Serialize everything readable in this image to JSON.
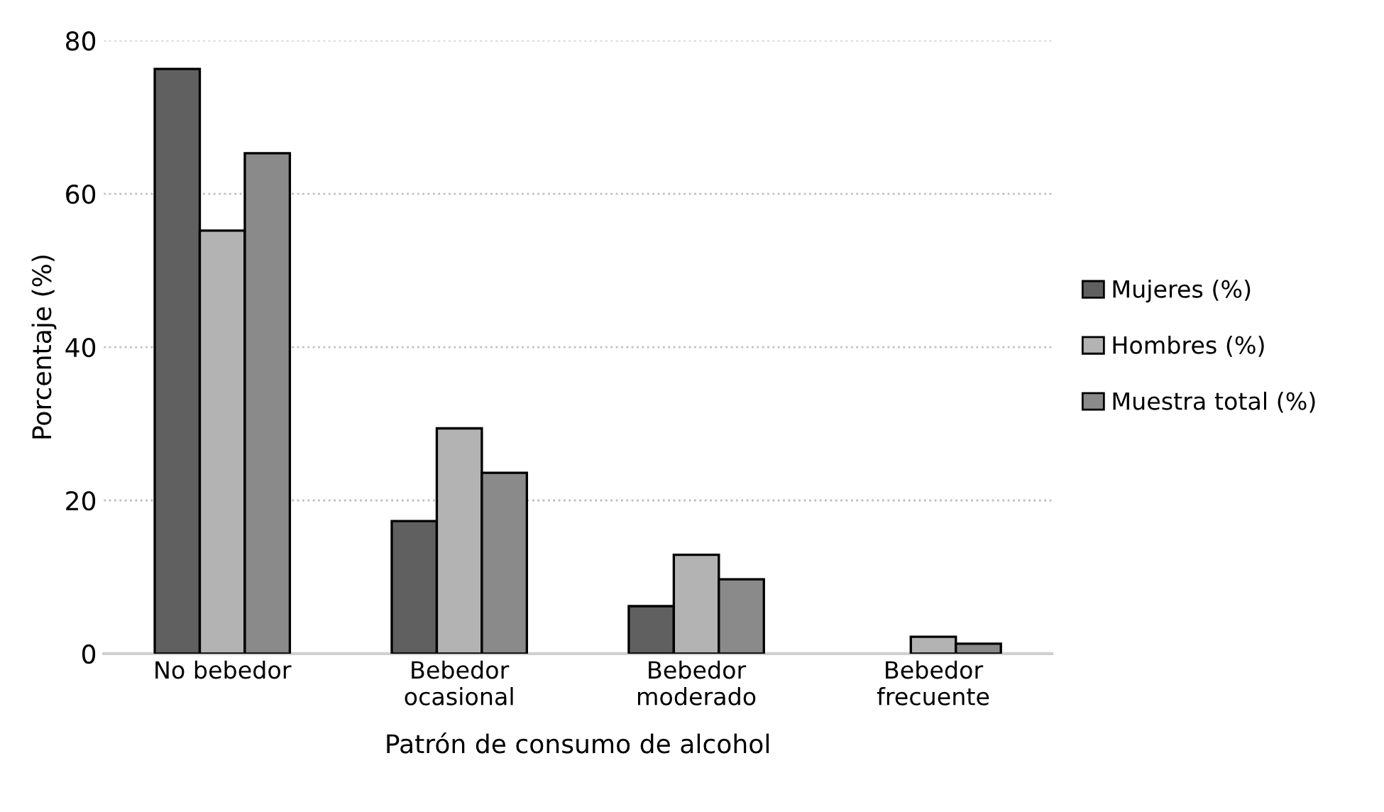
{
  "chart_data": {
    "type": "bar",
    "xlabel": "Patrón de consumo de alcohol",
    "ylabel": "Porcentaje (%)",
    "categories": [
      "No bebedor",
      "Bebedor\nocasional",
      "Bebedor\nmoderado",
      "Bebedor\nfrecuente"
    ],
    "series": [
      {
        "name": "Mujeres (%)",
        "color": "#606060",
        "values": [
          76.3,
          17.3,
          6.2,
          null
        ]
      },
      {
        "name": "Hombres (%)",
        "color": "#b3b3b3",
        "values": [
          55.2,
          29.4,
          12.9,
          2.2
        ]
      },
      {
        "name": "Muestra total (%)",
        "color": "#8a8a8a",
        "values": [
          65.3,
          23.6,
          9.7,
          1.3
        ]
      }
    ],
    "ylim": [
      0,
      80
    ],
    "yticks": [
      0,
      20,
      40,
      60,
      80
    ],
    "grid": "y",
    "legend": "right"
  }
}
